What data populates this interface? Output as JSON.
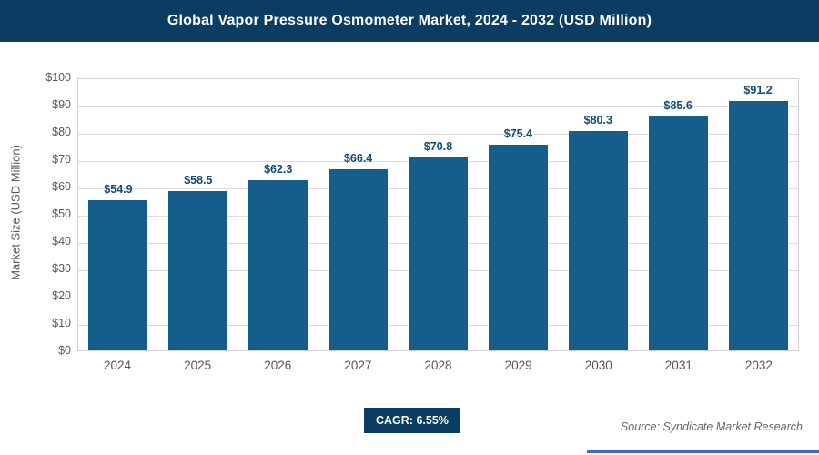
{
  "header": {
    "title": "Global Vapor Pressure Osmometer Market, 2024 - 2032 (USD Million)"
  },
  "chart_data": {
    "type": "bar",
    "title": "Global Vapor Pressure Osmometer Market, 2024 - 2032 (USD Million)",
    "categories": [
      "2024",
      "2025",
      "2026",
      "2027",
      "2028",
      "2029",
      "2030",
      "2031",
      "2032"
    ],
    "values": [
      54.9,
      58.5,
      62.3,
      66.4,
      70.8,
      75.4,
      80.3,
      85.6,
      91.2
    ],
    "value_labels": [
      "$54.9",
      "$58.5",
      "$62.3",
      "$66.4",
      "$70.8",
      "$75.4",
      "$80.3",
      "$85.6",
      "$91.2"
    ],
    "xlabel": "",
    "ylabel": "Market Size (USD Million)",
    "ylim": [
      0,
      100
    ],
    "ytick_step": 10,
    "ytick_prefix": "$",
    "grid": true,
    "legend": false,
    "bar_color": "#155d8b",
    "value_label_color": "#0e4d7a"
  },
  "footer": {
    "cagr_label": "CAGR: 6.55%",
    "source": "Source: Syndicate Market Research"
  }
}
